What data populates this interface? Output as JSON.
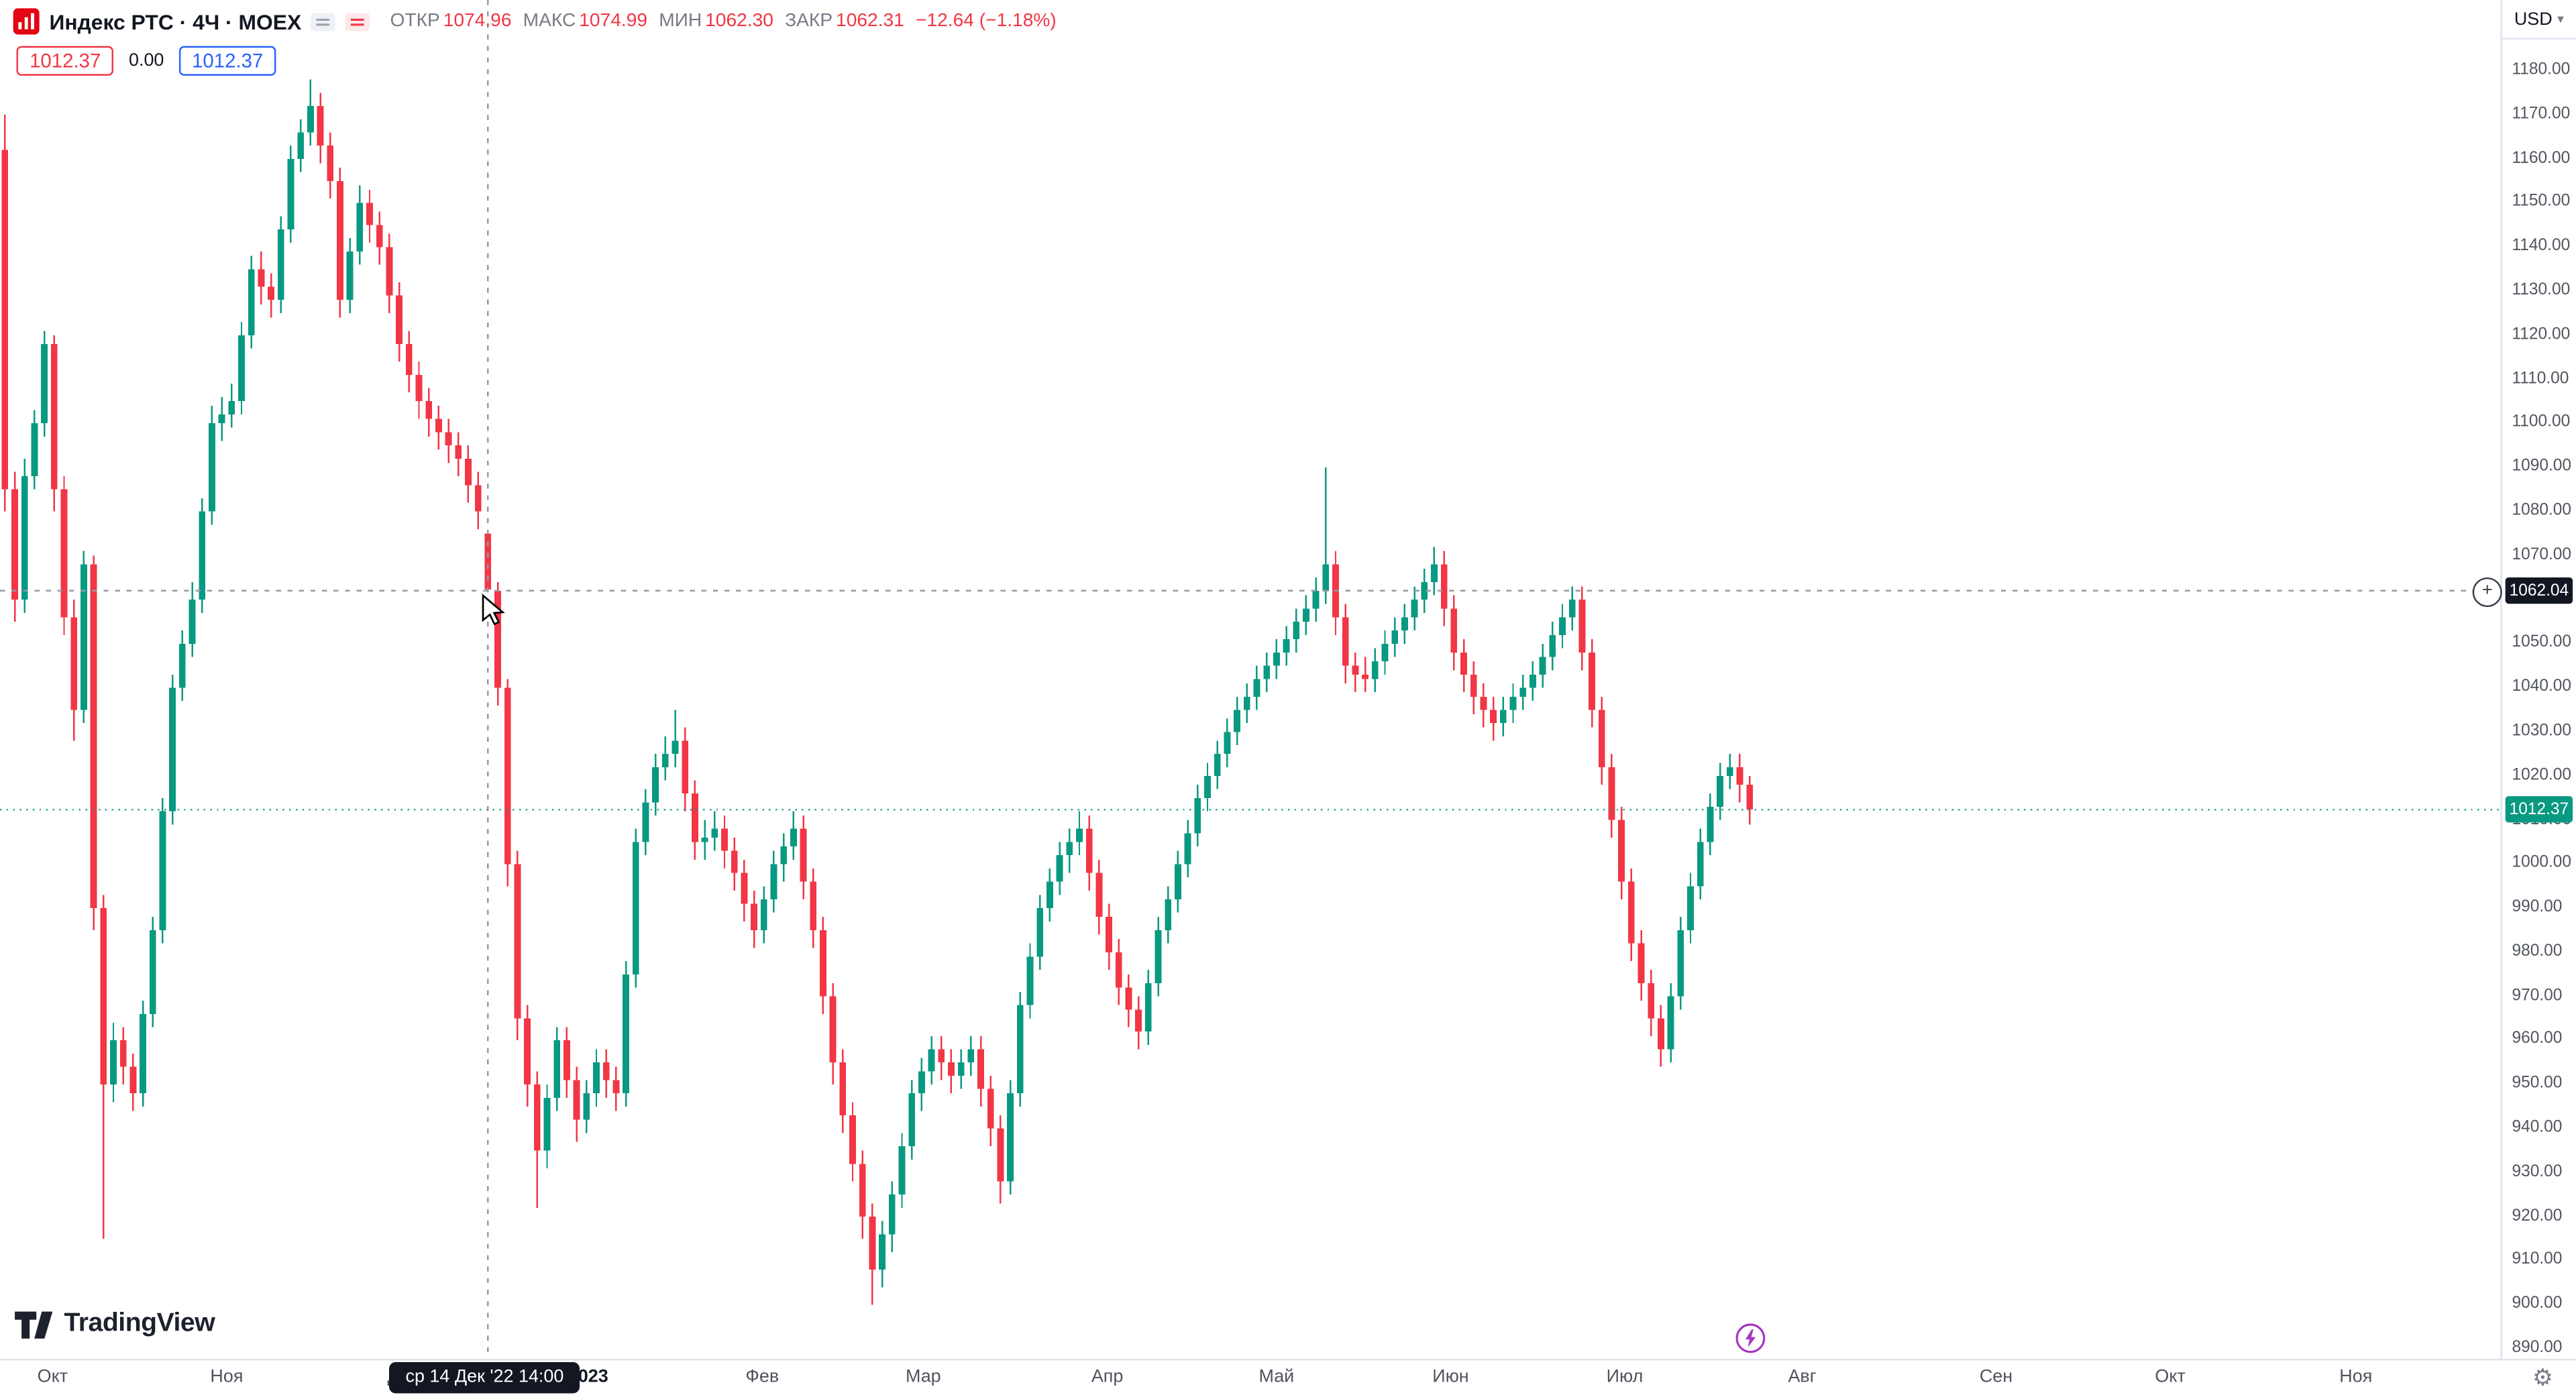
{
  "legend": {
    "title": "Индекс РТС · 4Ч · MOEX",
    "open_label": "ОТКР",
    "open": "1074.96",
    "high_label": "МАКС",
    "high": "1074.99",
    "low_label": "МИН",
    "low": "1062.30",
    "close_label": "ЗАКР",
    "close": "1062.31",
    "change": "−12.64 (−1.18%)"
  },
  "trade": {
    "sell": "1012.37",
    "spread": "0.00",
    "buy": "1012.37"
  },
  "price_scale": {
    "currency": "USD"
  },
  "footer": {
    "brand": "TradingView"
  },
  "chart_data": {
    "type": "candlestick",
    "title": "Индекс РТС · 4Ч · MOEX",
    "symbol": "Индекс РТС",
    "interval": "4Ч",
    "exchange": "MOEX",
    "currency": "USD",
    "ylim": [
      890,
      1180
    ],
    "y_tick_step": 10,
    "grid": false,
    "colors": {
      "up": "#089981",
      "down": "#f23645"
    },
    "x_ticks": [
      {
        "text": "Окт",
        "x": 32
      },
      {
        "text": "Ноя",
        "x": 138
      },
      {
        "text": "Дек",
        "x": 245
      },
      {
        "text": "2023",
        "x": 358,
        "year": true
      },
      {
        "text": "Фев",
        "x": 464
      },
      {
        "text": "Мар",
        "x": 562
      },
      {
        "text": "Апр",
        "x": 674
      },
      {
        "text": "Май",
        "x": 777
      },
      {
        "text": "Июн",
        "x": 883
      },
      {
        "text": "Июл",
        "x": 989
      },
      {
        "text": "Авг",
        "x": 1097
      },
      {
        "text": "Сен",
        "x": 1215
      },
      {
        "text": "Окт",
        "x": 1321
      },
      {
        "text": "Ноя",
        "x": 1434
      }
    ],
    "crosshair": {
      "index": 49,
      "price": 1062.04,
      "price_label": "1062.04",
      "time_label": "ср 14 Дек '22  14:00",
      "x": 295
    },
    "last_price": 1012.37,
    "last_price_label": "1012.37",
    "candles": [
      [
        1162,
        1170,
        1080,
        1085
      ],
      [
        1085,
        1089,
        1055,
        1060
      ],
      [
        1060,
        1092,
        1057,
        1088
      ],
      [
        1088,
        1103,
        1085,
        1100
      ],
      [
        1100,
        1121,
        1097,
        1118
      ],
      [
        1118,
        1120,
        1080,
        1085
      ],
      [
        1085,
        1088,
        1052,
        1056
      ],
      [
        1056,
        1060,
        1028,
        1035
      ],
      [
        1035,
        1071,
        1032,
        1068
      ],
      [
        1068,
        1070,
        985,
        990
      ],
      [
        990,
        993,
        915,
        950
      ],
      [
        950,
        964,
        946,
        960
      ],
      [
        960,
        963,
        950,
        954
      ],
      [
        954,
        957,
        944,
        948
      ],
      [
        948,
        969,
        945,
        966
      ],
      [
        966,
        988,
        963,
        985
      ],
      [
        985,
        1015,
        982,
        1012
      ],
      [
        1012,
        1043,
        1009,
        1040
      ],
      [
        1040,
        1053,
        1037,
        1050
      ],
      [
        1050,
        1064,
        1047,
        1060
      ],
      [
        1060,
        1083,
        1057,
        1080
      ],
      [
        1080,
        1104,
        1077,
        1100
      ],
      [
        1100,
        1106,
        1096,
        1102
      ],
      [
        1102,
        1109,
        1099,
        1105
      ],
      [
        1105,
        1123,
        1102,
        1120
      ],
      [
        1120,
        1138,
        1117,
        1135
      ],
      [
        1135,
        1139,
        1127,
        1131
      ],
      [
        1131,
        1134,
        1124,
        1128
      ],
      [
        1128,
        1147,
        1125,
        1144
      ],
      [
        1144,
        1163,
        1141,
        1160
      ],
      [
        1160,
        1169,
        1157,
        1166
      ],
      [
        1166,
        1178,
        1163,
        1172
      ],
      [
        1172,
        1175,
        1159,
        1163
      ],
      [
        1163,
        1166,
        1151,
        1155
      ],
      [
        1155,
        1158,
        1124,
        1128
      ],
      [
        1128,
        1142,
        1125,
        1139
      ],
      [
        1139,
        1154,
        1136,
        1150
      ],
      [
        1150,
        1153,
        1141,
        1145
      ],
      [
        1145,
        1148,
        1136,
        1140
      ],
      [
        1140,
        1143,
        1125,
        1129
      ],
      [
        1129,
        1132,
        1114,
        1118
      ],
      [
        1118,
        1121,
        1107,
        1111
      ],
      [
        1111,
        1114,
        1101,
        1105
      ],
      [
        1105,
        1108,
        1097,
        1101
      ],
      [
        1101,
        1104,
        1094,
        1098
      ],
      [
        1098,
        1101,
        1091,
        1095
      ],
      [
        1095,
        1098,
        1088,
        1092
      ],
      [
        1092,
        1095,
        1082,
        1086
      ],
      [
        1086,
        1089,
        1076,
        1080
      ],
      [
        1074.96,
        1074.99,
        1062.3,
        1062.31
      ],
      [
        1062,
        1064,
        1036,
        1040
      ],
      [
        1040,
        1042,
        995,
        1000
      ],
      [
        1000,
        1003,
        960,
        965
      ],
      [
        965,
        968,
        945,
        950
      ],
      [
        950,
        953,
        922,
        935
      ],
      [
        935,
        950,
        931,
        947
      ],
      [
        947,
        963,
        944,
        960
      ],
      [
        960,
        963,
        947,
        951
      ],
      [
        951,
        954,
        937,
        942
      ],
      [
        942,
        951,
        939,
        948
      ],
      [
        948,
        958,
        945,
        955
      ],
      [
        955,
        958,
        947,
        951
      ],
      [
        951,
        954,
        944,
        948
      ],
      [
        948,
        978,
        945,
        975
      ],
      [
        975,
        1008,
        972,
        1005
      ],
      [
        1005,
        1017,
        1002,
        1014
      ],
      [
        1014,
        1025,
        1011,
        1022
      ],
      [
        1022,
        1029,
        1019,
        1025
      ],
      [
        1025,
        1035,
        1022,
        1028
      ],
      [
        1028,
        1031,
        1012,
        1016
      ],
      [
        1016,
        1019,
        1001,
        1005
      ],
      [
        1005,
        1010,
        1001,
        1006
      ],
      [
        1006,
        1012,
        1003,
        1008
      ],
      [
        1008,
        1011,
        999,
        1003
      ],
      [
        1003,
        1006,
        994,
        998
      ],
      [
        998,
        1001,
        987,
        991
      ],
      [
        991,
        994,
        981,
        985
      ],
      [
        985,
        995,
        982,
        992
      ],
      [
        992,
        1003,
        989,
        1000
      ],
      [
        1000,
        1007,
        996,
        1004
      ],
      [
        1004,
        1012,
        1001,
        1008
      ],
      [
        1008,
        1011,
        992,
        996
      ],
      [
        996,
        999,
        981,
        985
      ],
      [
        985,
        988,
        966,
        970
      ],
      [
        970,
        973,
        950,
        955
      ],
      [
        955,
        958,
        939,
        943
      ],
      [
        943,
        946,
        928,
        932
      ],
      [
        932,
        935,
        915,
        920
      ],
      [
        920,
        923,
        900,
        908
      ],
      [
        908,
        919,
        904,
        916
      ],
      [
        916,
        928,
        912,
        925
      ],
      [
        925,
        939,
        922,
        936
      ],
      [
        936,
        951,
        933,
        948
      ],
      [
        948,
        956,
        944,
        953
      ],
      [
        953,
        961,
        950,
        958
      ],
      [
        958,
        961,
        951,
        955
      ],
      [
        955,
        958,
        948,
        952
      ],
      [
        952,
        958,
        949,
        955
      ],
      [
        955,
        961,
        952,
        958
      ],
      [
        958,
        961,
        945,
        949
      ],
      [
        949,
        952,
        936,
        940
      ],
      [
        940,
        943,
        923,
        928
      ],
      [
        928,
        951,
        925,
        948
      ],
      [
        948,
        971,
        945,
        968
      ],
      [
        968,
        982,
        965,
        979
      ],
      [
        979,
        993,
        976,
        990
      ],
      [
        990,
        999,
        987,
        996
      ],
      [
        996,
        1005,
        993,
        1002
      ],
      [
        1002,
        1008,
        998,
        1005
      ],
      [
        1005,
        1012,
        1002,
        1008
      ],
      [
        1008,
        1011,
        994,
        998
      ],
      [
        998,
        1001,
        984,
        988
      ],
      [
        988,
        991,
        976,
        980
      ],
      [
        980,
        983,
        968,
        972
      ],
      [
        972,
        975,
        963,
        967
      ],
      [
        967,
        970,
        958,
        962
      ],
      [
        962,
        976,
        959,
        973
      ],
      [
        973,
        988,
        970,
        985
      ],
      [
        985,
        995,
        982,
        992
      ],
      [
        992,
        1003,
        989,
        1000
      ],
      [
        1000,
        1010,
        997,
        1007
      ],
      [
        1007,
        1018,
        1004,
        1015
      ],
      [
        1015,
        1023,
        1012,
        1020
      ],
      [
        1020,
        1028,
        1017,
        1025
      ],
      [
        1025,
        1033,
        1022,
        1030
      ],
      [
        1030,
        1038,
        1027,
        1035
      ],
      [
        1035,
        1041,
        1032,
        1038
      ],
      [
        1038,
        1045,
        1035,
        1042
      ],
      [
        1042,
        1048,
        1039,
        1045
      ],
      [
        1045,
        1051,
        1042,
        1048
      ],
      [
        1048,
        1054,
        1045,
        1051
      ],
      [
        1051,
        1058,
        1048,
        1055
      ],
      [
        1055,
        1061,
        1052,
        1058
      ],
      [
        1058,
        1065,
        1055,
        1062
      ],
      [
        1062,
        1090,
        1059,
        1068
      ],
      [
        1068,
        1071,
        1052,
        1056
      ],
      [
        1056,
        1059,
        1041,
        1045
      ],
      [
        1045,
        1048,
        1039,
        1043
      ],
      [
        1043,
        1047,
        1039,
        1042
      ],
      [
        1042,
        1049,
        1039,
        1046
      ],
      [
        1046,
        1053,
        1043,
        1050
      ],
      [
        1050,
        1056,
        1047,
        1053
      ],
      [
        1053,
        1059,
        1050,
        1056
      ],
      [
        1056,
        1063,
        1053,
        1060
      ],
      [
        1060,
        1067,
        1057,
        1064
      ],
      [
        1064,
        1072,
        1061,
        1068
      ],
      [
        1068,
        1071,
        1054,
        1058
      ],
      [
        1058,
        1061,
        1044,
        1048
      ],
      [
        1048,
        1051,
        1039,
        1043
      ],
      [
        1043,
        1046,
        1034,
        1038
      ],
      [
        1038,
        1041,
        1031,
        1035
      ],
      [
        1035,
        1038,
        1028,
        1032
      ],
      [
        1032,
        1038,
        1029,
        1035
      ],
      [
        1035,
        1041,
        1032,
        1038
      ],
      [
        1038,
        1043,
        1035,
        1040
      ],
      [
        1040,
        1046,
        1037,
        1043
      ],
      [
        1043,
        1050,
        1040,
        1047
      ],
      [
        1047,
        1055,
        1044,
        1052
      ],
      [
        1052,
        1059,
        1049,
        1056
      ],
      [
        1056,
        1063,
        1053,
        1060
      ],
      [
        1060,
        1063,
        1044,
        1048
      ],
      [
        1048,
        1051,
        1031,
        1035
      ],
      [
        1035,
        1038,
        1018,
        1022
      ],
      [
        1022,
        1025,
        1006,
        1010
      ],
      [
        1010,
        1013,
        992,
        996
      ],
      [
        996,
        999,
        978,
        982
      ],
      [
        982,
        985,
        969,
        973
      ],
      [
        973,
        976,
        961,
        965
      ],
      [
        965,
        968,
        954,
        958
      ],
      [
        958,
        973,
        955,
        970
      ],
      [
        970,
        988,
        967,
        985
      ],
      [
        985,
        998,
        982,
        995
      ],
      [
        995,
        1008,
        992,
        1005
      ],
      [
        1005,
        1016,
        1002,
        1013
      ],
      [
        1013,
        1023,
        1010,
        1020
      ],
      [
        1020,
        1025,
        1017,
        1022
      ],
      [
        1022,
        1025,
        1014,
        1018
      ],
      [
        1018,
        1020,
        1009,
        1012.37
      ]
    ]
  }
}
